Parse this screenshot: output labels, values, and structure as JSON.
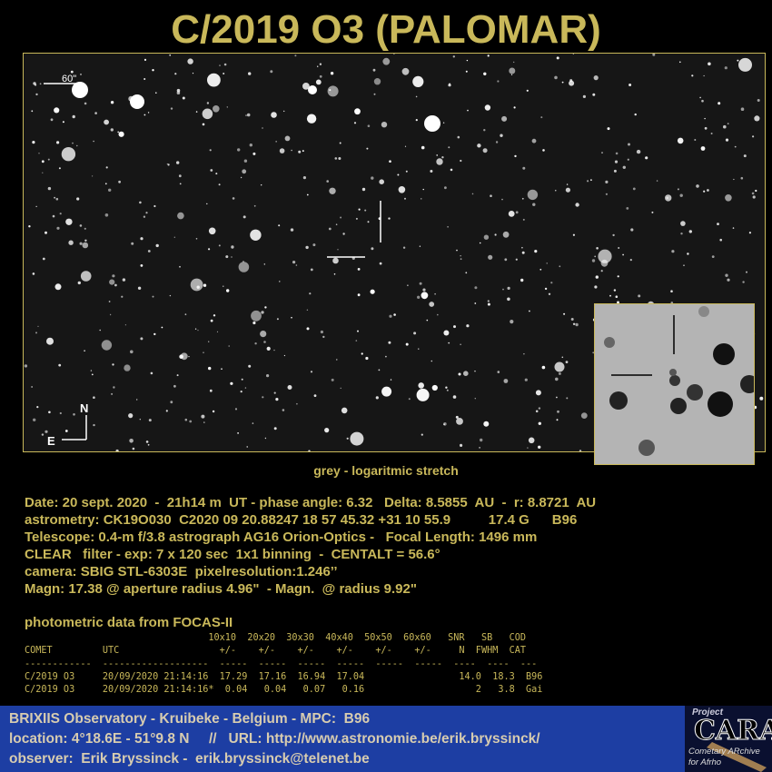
{
  "title": "C/2019 O3 (PALOMAR)",
  "image": {
    "scale_label": "60\"",
    "north_label": "N",
    "east_label": "E"
  },
  "caption": "grey -  logaritmic stretch",
  "info_lines": [
    "Date: 20 sept. 2020  -  21h14 m  UT - phase angle: 6.32   Delta: 8.5855  AU  -  r: 8.8721  AU",
    "astrometry: CK19O030  C2020 09 20.88247 18 57 45.32 +31 10 55.9          17.4 G      B96",
    "Telescope: 0.4-m f/3.8 astrograph AG16 Orion-Optics -   Focal Length: 1496 mm",
    "CLEAR   filter - exp: 7 x 120 sec  1x1 binning  -  CENTALT = 56.6°",
    "camera: SBIG STL-6303E  pixelresolution:1.246’’",
    "Magn: 17.38 @ aperture radius 4.96\"  - Magn.  @ radius 9.92\""
  ],
  "photometry": {
    "title": "photometric data from FOCAS-II",
    "rows": [
      "                                 10x10  20x20  30x30  40x40  50x50  60x60   SNR   SB   COD",
      "COMET         UTC                  +/-    +/-    +/-    +/-    +/-    +/-     N  FWHM  CAT",
      "------------  -------------------  -----  -----  -----  -----  -----  -----  ----  ----  ---",
      "C/2019 O3     20/09/2020 21:14:16  17.29  17.16  16.94  17.04                 14.0  18.3  B96",
      "C/2019 O3     20/09/2020 21:14:16*  0.04   0.04   0.07   0.16                    2   3.8  Gai"
    ]
  },
  "footer": {
    "lines": [
      "BRIXIIS Observatory - Kruibeke - Belgium - MPC:  B96",
      "location: 4°18.6E - 51°9.8 N     //   URL: http://www.astronomie.be/erik.bryssinck/",
      "observer:  Erik Bryssinck -  erik.bryssinck@telenet.be"
    ],
    "logo": {
      "project": "Project",
      "name": "CARA",
      "sub1": "Cometary ARchive",
      "sub2": "for Afrho"
    }
  },
  "colors": {
    "text": "#c9b85a",
    "footer_bg": "#1d3ea3"
  }
}
